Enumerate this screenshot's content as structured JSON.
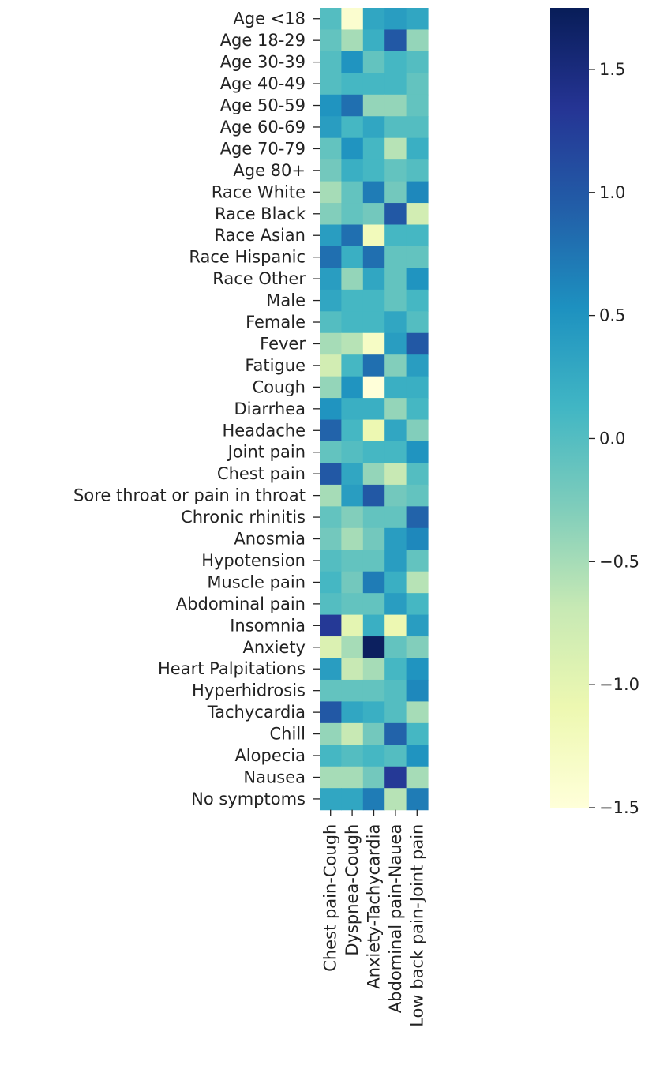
{
  "chart_data": {
    "type": "heatmap",
    "title": "",
    "xlabel": "",
    "ylabel": "",
    "rows": [
      "Age <18",
      "Age 18-29",
      "Age 30-39",
      "Age 40-49",
      "Age 50-59",
      "Age 60-69",
      "Age 70-79",
      "Age 80+",
      "Race White",
      "Race Black",
      "Race Asian",
      "Race Hispanic",
      "Race Other",
      "Male",
      "Female",
      "Fever",
      "Fatigue",
      "Cough",
      "Diarrhea",
      "Headache",
      "Joint pain",
      "Chest pain",
      "Sore throat or pain in throat",
      "Chronic rhinitis",
      "Anosmia",
      "Hypotension",
      "Muscle pain",
      "Abdominal pain",
      "Insomnia",
      "Anxiety",
      "Heart Palpitations",
      "Hyperhidrosis",
      "Tachycardia",
      "Chill",
      "Alopecia",
      "Nausea",
      "No symptoms"
    ],
    "columns": [
      "Chest pain-Cough",
      "Dyspnea-Cough",
      "Anxiety-Tachycardia",
      "Abdominal pain-Nauea",
      "Low back pain-Joint pain"
    ],
    "values": [
      [
        0.0,
        -1.4,
        0.3,
        0.4,
        0.3
      ],
      [
        -0.1,
        -0.5,
        0.2,
        1.0,
        -0.4
      ],
      [
        0.0,
        0.5,
        -0.1,
        0.1,
        0.0
      ],
      [
        0.0,
        0.1,
        0.1,
        0.1,
        -0.1
      ],
      [
        0.5,
        0.8,
        -0.4,
        -0.4,
        -0.1
      ],
      [
        0.4,
        0.1,
        0.3,
        0.0,
        0.0
      ],
      [
        -0.1,
        0.5,
        0.1,
        -0.6,
        0.2
      ],
      [
        -0.2,
        0.2,
        0.1,
        -0.1,
        0.0
      ],
      [
        -0.5,
        -0.1,
        0.7,
        -0.2,
        0.6
      ],
      [
        -0.3,
        -0.1,
        -0.2,
        1.0,
        -0.8
      ],
      [
        0.4,
        0.8,
        -1.2,
        0.1,
        0.1
      ],
      [
        0.8,
        0.2,
        0.8,
        -0.1,
        -0.1
      ],
      [
        0.4,
        -0.4,
        0.3,
        -0.1,
        0.5
      ],
      [
        0.3,
        0.1,
        0.1,
        -0.1,
        0.1
      ],
      [
        0.0,
        0.1,
        0.1,
        0.3,
        0.0
      ],
      [
        -0.5,
        -0.6,
        -1.3,
        0.4,
        1.0
      ],
      [
        -0.8,
        0.1,
        0.8,
        -0.3,
        0.4
      ],
      [
        -0.4,
        0.5,
        -1.5,
        0.2,
        0.2
      ],
      [
        0.5,
        0.2,
        0.2,
        -0.4,
        0.1
      ],
      [
        0.9,
        0.1,
        -1.1,
        0.3,
        -0.3
      ],
      [
        -0.1,
        0.0,
        0.1,
        0.1,
        0.5
      ],
      [
        1.0,
        0.3,
        -0.4,
        -0.7,
        0.0
      ],
      [
        -0.5,
        0.4,
        1.0,
        -0.2,
        -0.1
      ],
      [
        -0.1,
        -0.3,
        -0.1,
        -0.1,
        0.9
      ],
      [
        -0.2,
        -0.5,
        -0.2,
        0.4,
        0.6
      ],
      [
        0.0,
        -0.1,
        -0.1,
        0.4,
        -0.1
      ],
      [
        0.1,
        -0.2,
        0.7,
        0.2,
        -0.6
      ],
      [
        0.0,
        -0.1,
        -0.1,
        0.4,
        0.1
      ],
      [
        1.3,
        -1.0,
        0.2,
        -1.1,
        0.4
      ],
      [
        -0.9,
        -0.5,
        1.7,
        -0.1,
        -0.3
      ],
      [
        0.4,
        -0.7,
        -0.5,
        0.1,
        0.5
      ],
      [
        -0.1,
        -0.1,
        -0.1,
        0.0,
        0.6
      ],
      [
        1.0,
        0.3,
        0.2,
        0.0,
        -0.5
      ],
      [
        -0.4,
        -0.7,
        -0.2,
        0.9,
        0.1
      ],
      [
        0.1,
        0.0,
        0.1,
        0.0,
        0.5
      ],
      [
        -0.5,
        -0.5,
        -0.2,
        1.3,
        -0.5
      ],
      [
        0.3,
        0.3,
        0.7,
        -0.6,
        0.7
      ]
    ],
    "colorbar": {
      "min": -1.5,
      "max": 1.75,
      "ticks": [
        -1.5,
        -1.0,
        -0.5,
        0.0,
        0.5,
        1.0,
        1.5
      ],
      "tick_labels": [
        "−1.5",
        "−1.0",
        "−0.5",
        "0.0",
        "0.5",
        "1.0",
        "1.5"
      ],
      "colormap": "YlGnBu",
      "colormap_stops": [
        "#ffffd9",
        "#edf8b1",
        "#c7e9b4",
        "#7fcdbb",
        "#41b6c4",
        "#1d91c0",
        "#225ea8",
        "#253494",
        "#081d58"
      ]
    },
    "grid": false,
    "legend": "colorbar-right"
  }
}
